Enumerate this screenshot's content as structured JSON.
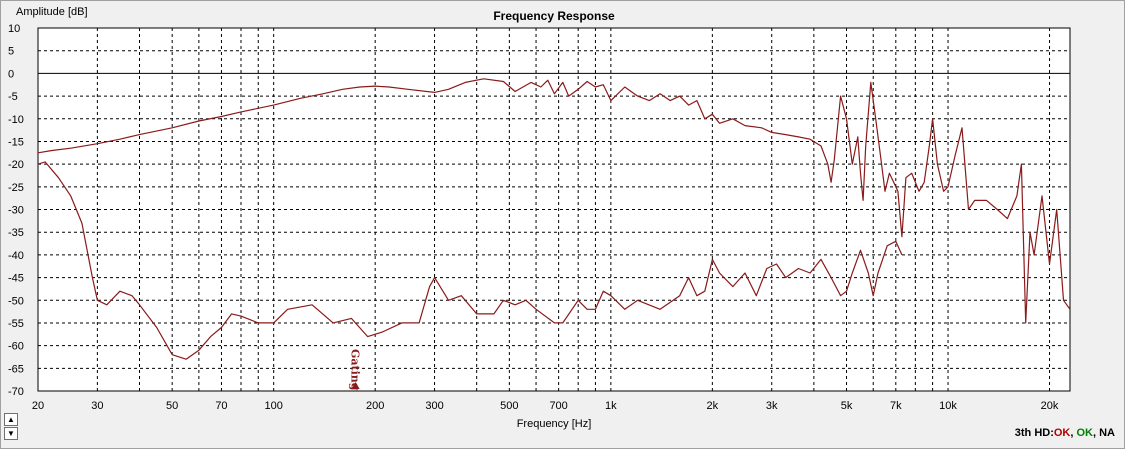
{
  "chart_data": {
    "type": "line",
    "title": "Frequency Response",
    "ylabel": "Amplitude [dB]",
    "xlabel": "Frequency [Hz]",
    "xscale": "log",
    "xlim": [
      20,
      23000
    ],
    "ylim": [
      -70,
      10
    ],
    "grid": true,
    "yticks": [
      10,
      5,
      0,
      -5,
      -10,
      -15,
      -20,
      -25,
      -30,
      -35,
      -40,
      -45,
      -50,
      -55,
      -60,
      -65,
      -70
    ],
    "xtick_labels": [
      {
        "v": 20,
        "t": "20"
      },
      {
        "v": 30,
        "t": "30"
      },
      {
        "v": 50,
        "t": "50"
      },
      {
        "v": 70,
        "t": "70"
      },
      {
        "v": 100,
        "t": "100"
      },
      {
        "v": 200,
        "t": "200"
      },
      {
        "v": 300,
        "t": "300"
      },
      {
        "v": 500,
        "t": "500"
      },
      {
        "v": 700,
        "t": "700"
      },
      {
        "v": 1000,
        "t": "1k"
      },
      {
        "v": 2000,
        "t": "2k"
      },
      {
        "v": 3000,
        "t": "3k"
      },
      {
        "v": 5000,
        "t": "5k"
      },
      {
        "v": 7000,
        "t": "7k"
      },
      {
        "v": 10000,
        "t": "10k"
      },
      {
        "v": 20000,
        "t": "20k"
      }
    ],
    "xgrid": [
      20,
      30,
      40,
      50,
      60,
      70,
      80,
      90,
      100,
      200,
      300,
      400,
      500,
      600,
      700,
      800,
      900,
      1000,
      2000,
      3000,
      4000,
      5000,
      6000,
      7000,
      8000,
      9000,
      10000,
      20000
    ],
    "marker": {
      "label": "Gating",
      "x": 175
    },
    "series": [
      {
        "color": "#8b1a1a",
        "points": [
          [
            20,
            -17.5
          ],
          [
            22,
            -17
          ],
          [
            25,
            -16.5
          ],
          [
            30,
            -15.5
          ],
          [
            35,
            -14.5
          ],
          [
            40,
            -13.5
          ],
          [
            50,
            -12
          ],
          [
            60,
            -10.5
          ],
          [
            70,
            -9.5
          ],
          [
            80,
            -8.5
          ],
          [
            100,
            -7
          ],
          [
            120,
            -5.5
          ],
          [
            140,
            -4.5
          ],
          [
            160,
            -3.5
          ],
          [
            180,
            -3
          ],
          [
            200,
            -2.8
          ],
          [
            220,
            -3
          ],
          [
            250,
            -3.5
          ],
          [
            300,
            -4.2
          ],
          [
            330,
            -3.5
          ],
          [
            370,
            -2
          ],
          [
            420,
            -1.2
          ],
          [
            480,
            -1.8
          ],
          [
            520,
            -4
          ],
          [
            580,
            -2
          ],
          [
            620,
            -3
          ],
          [
            650,
            -1.5
          ],
          [
            680,
            -4.5
          ],
          [
            720,
            -2
          ],
          [
            750,
            -5
          ],
          [
            800,
            -3.5
          ],
          [
            850,
            -1.8
          ],
          [
            900,
            -3
          ],
          [
            950,
            -2.5
          ],
          [
            1000,
            -6
          ],
          [
            1100,
            -3
          ],
          [
            1200,
            -5
          ],
          [
            1300,
            -6
          ],
          [
            1400,
            -4.5
          ],
          [
            1500,
            -6
          ],
          [
            1600,
            -5
          ],
          [
            1700,
            -7
          ],
          [
            1800,
            -6
          ],
          [
            1900,
            -10
          ],
          [
            2000,
            -9
          ],
          [
            2100,
            -11
          ],
          [
            2300,
            -10
          ],
          [
            2500,
            -11.5
          ],
          [
            2800,
            -12
          ],
          [
            3000,
            -13
          ],
          [
            3300,
            -13.5
          ],
          [
            3600,
            -14
          ],
          [
            3900,
            -14.5
          ],
          [
            4200,
            -16
          ],
          [
            4400,
            -20
          ],
          [
            4500,
            -24
          ],
          [
            4600,
            -19
          ],
          [
            4800,
            -5
          ],
          [
            5000,
            -10
          ],
          [
            5200,
            -20
          ],
          [
            5400,
            -14
          ],
          [
            5500,
            -22
          ],
          [
            5600,
            -28
          ],
          [
            5700,
            -16
          ],
          [
            5900,
            -2
          ],
          [
            6100,
            -10
          ],
          [
            6300,
            -18
          ],
          [
            6500,
            -26
          ],
          [
            6700,
            -22
          ],
          [
            6900,
            -24
          ],
          [
            7100,
            -26
          ],
          [
            7300,
            -36
          ],
          [
            7500,
            -23
          ],
          [
            7800,
            -22
          ],
          [
            8200,
            -26
          ],
          [
            8500,
            -24
          ],
          [
            8800,
            -16
          ],
          [
            9000,
            -10
          ],
          [
            9300,
            -20
          ],
          [
            9700,
            -26
          ],
          [
            10000,
            -25
          ],
          [
            10500,
            -18
          ],
          [
            11000,
            -12
          ],
          [
            11500,
            -30
          ],
          [
            12000,
            -28
          ],
          [
            13000,
            -28
          ],
          [
            14000,
            -30
          ],
          [
            15000,
            -32
          ],
          [
            16000,
            -27
          ],
          [
            16500,
            -20
          ],
          [
            17000,
            -55
          ],
          [
            17500,
            -35
          ],
          [
            18000,
            -40
          ],
          [
            19000,
            -27
          ],
          [
            20000,
            -42
          ],
          [
            21000,
            -30
          ],
          [
            22000,
            -50
          ],
          [
            23000,
            -52
          ]
        ]
      },
      {
        "color": "#8b1a1a",
        "points": [
          [
            20,
            -20
          ],
          [
            21,
            -19.5
          ],
          [
            23,
            -23
          ],
          [
            25,
            -27
          ],
          [
            27,
            -33
          ],
          [
            29,
            -45
          ],
          [
            30,
            -50
          ],
          [
            32,
            -51
          ],
          [
            35,
            -48
          ],
          [
            38,
            -49
          ],
          [
            40,
            -51
          ],
          [
            45,
            -56
          ],
          [
            50,
            -62
          ],
          [
            55,
            -63
          ],
          [
            60,
            -61
          ],
          [
            65,
            -58
          ],
          [
            70,
            -56
          ],
          [
            75,
            -53
          ],
          [
            80,
            -53.5
          ],
          [
            90,
            -55
          ],
          [
            100,
            -55
          ],
          [
            110,
            -52
          ],
          [
            130,
            -51
          ],
          [
            150,
            -55
          ],
          [
            170,
            -54
          ],
          [
            190,
            -58
          ],
          [
            210,
            -57
          ],
          [
            240,
            -55
          ],
          [
            270,
            -55
          ],
          [
            290,
            -47
          ],
          [
            300,
            -45
          ],
          [
            330,
            -50
          ],
          [
            360,
            -49
          ],
          [
            400,
            -53
          ],
          [
            450,
            -53
          ],
          [
            480,
            -50
          ],
          [
            520,
            -51
          ],
          [
            560,
            -50
          ],
          [
            600,
            -52
          ],
          [
            680,
            -55
          ],
          [
            720,
            -55
          ],
          [
            800,
            -50
          ],
          [
            850,
            -52
          ],
          [
            900,
            -52
          ],
          [
            950,
            -48
          ],
          [
            1000,
            -49
          ],
          [
            1100,
            -52
          ],
          [
            1200,
            -50
          ],
          [
            1400,
            -52
          ],
          [
            1600,
            -49
          ],
          [
            1700,
            -45
          ],
          [
            1800,
            -49
          ],
          [
            1900,
            -48
          ],
          [
            2000,
            -41
          ],
          [
            2100,
            -44
          ],
          [
            2300,
            -47
          ],
          [
            2500,
            -44
          ],
          [
            2700,
            -49
          ],
          [
            2900,
            -43
          ],
          [
            3100,
            -42
          ],
          [
            3300,
            -45
          ],
          [
            3600,
            -43
          ],
          [
            3900,
            -44
          ],
          [
            4200,
            -41
          ],
          [
            4500,
            -45
          ],
          [
            4800,
            -49
          ],
          [
            5000,
            -48
          ],
          [
            5200,
            -44
          ],
          [
            5500,
            -39
          ],
          [
            5800,
            -44
          ],
          [
            6000,
            -49
          ],
          [
            6200,
            -44
          ],
          [
            6600,
            -38
          ],
          [
            7000,
            -37
          ],
          [
            7300,
            -40
          ]
        ]
      }
    ]
  },
  "status": {
    "prefix": "3th HD:",
    "items": [
      {
        "text": "OK",
        "color": "#b00000"
      },
      {
        "text": ", ",
        "color": "#000000"
      },
      {
        "text": "OK",
        "color": "#008000"
      },
      {
        "text": ", NA",
        "color": "#000000"
      }
    ]
  }
}
